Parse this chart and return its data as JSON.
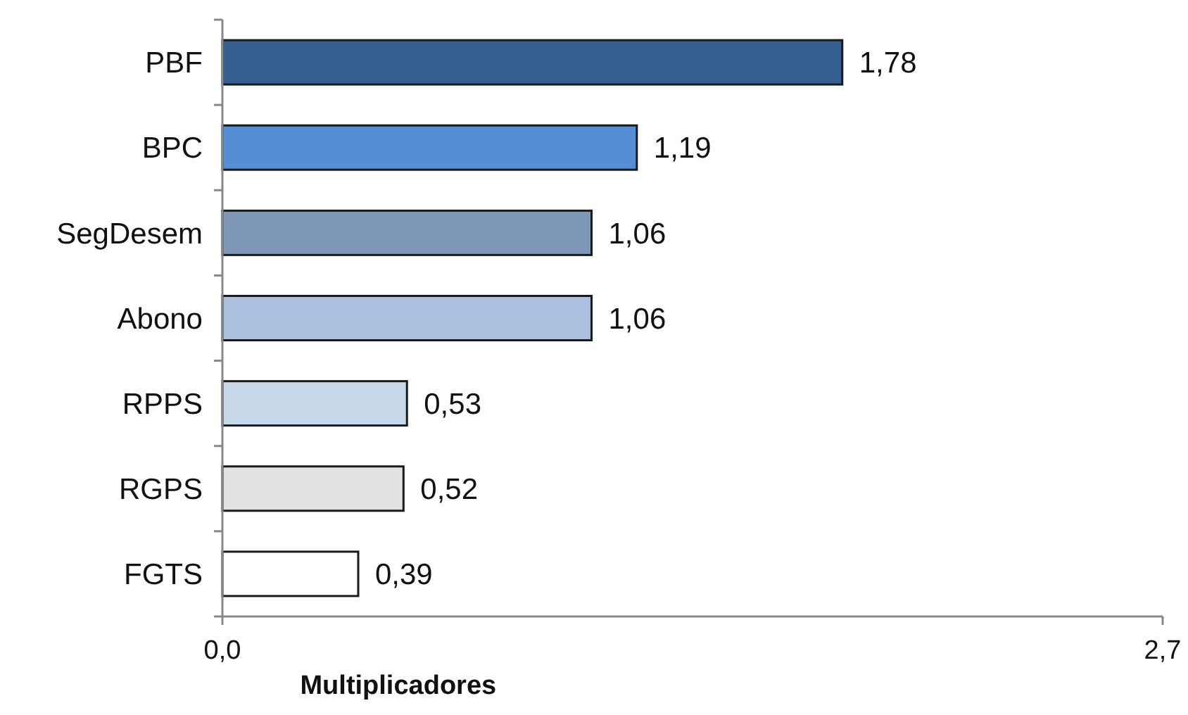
{
  "chart_data": {
    "type": "bar",
    "orientation": "horizontal",
    "xlabel": "Multiplicadores",
    "categories": [
      "PBF",
      "BPC",
      "SegDesem",
      "Abono",
      "RPPS",
      "RGPS",
      "FGTS"
    ],
    "values": [
      1.78,
      1.19,
      1.06,
      1.06,
      0.53,
      0.52,
      0.39
    ],
    "colors": [
      "#365f91",
      "#558ed5",
      "#7f98b8",
      "#acc1e0",
      "#c6d8ea",
      "#e2e2e2",
      "#ffffff"
    ],
    "value_labels": [
      "1,78",
      "1,19",
      "1,06",
      "1,06",
      "0,53",
      "0,52",
      "0,39"
    ],
    "xlim": [
      0,
      2.7
    ],
    "xticks": [
      {
        "value": 0,
        "label": "0,0"
      },
      {
        "value": 2.7,
        "label": "2,7"
      }
    ],
    "grid": false
  }
}
